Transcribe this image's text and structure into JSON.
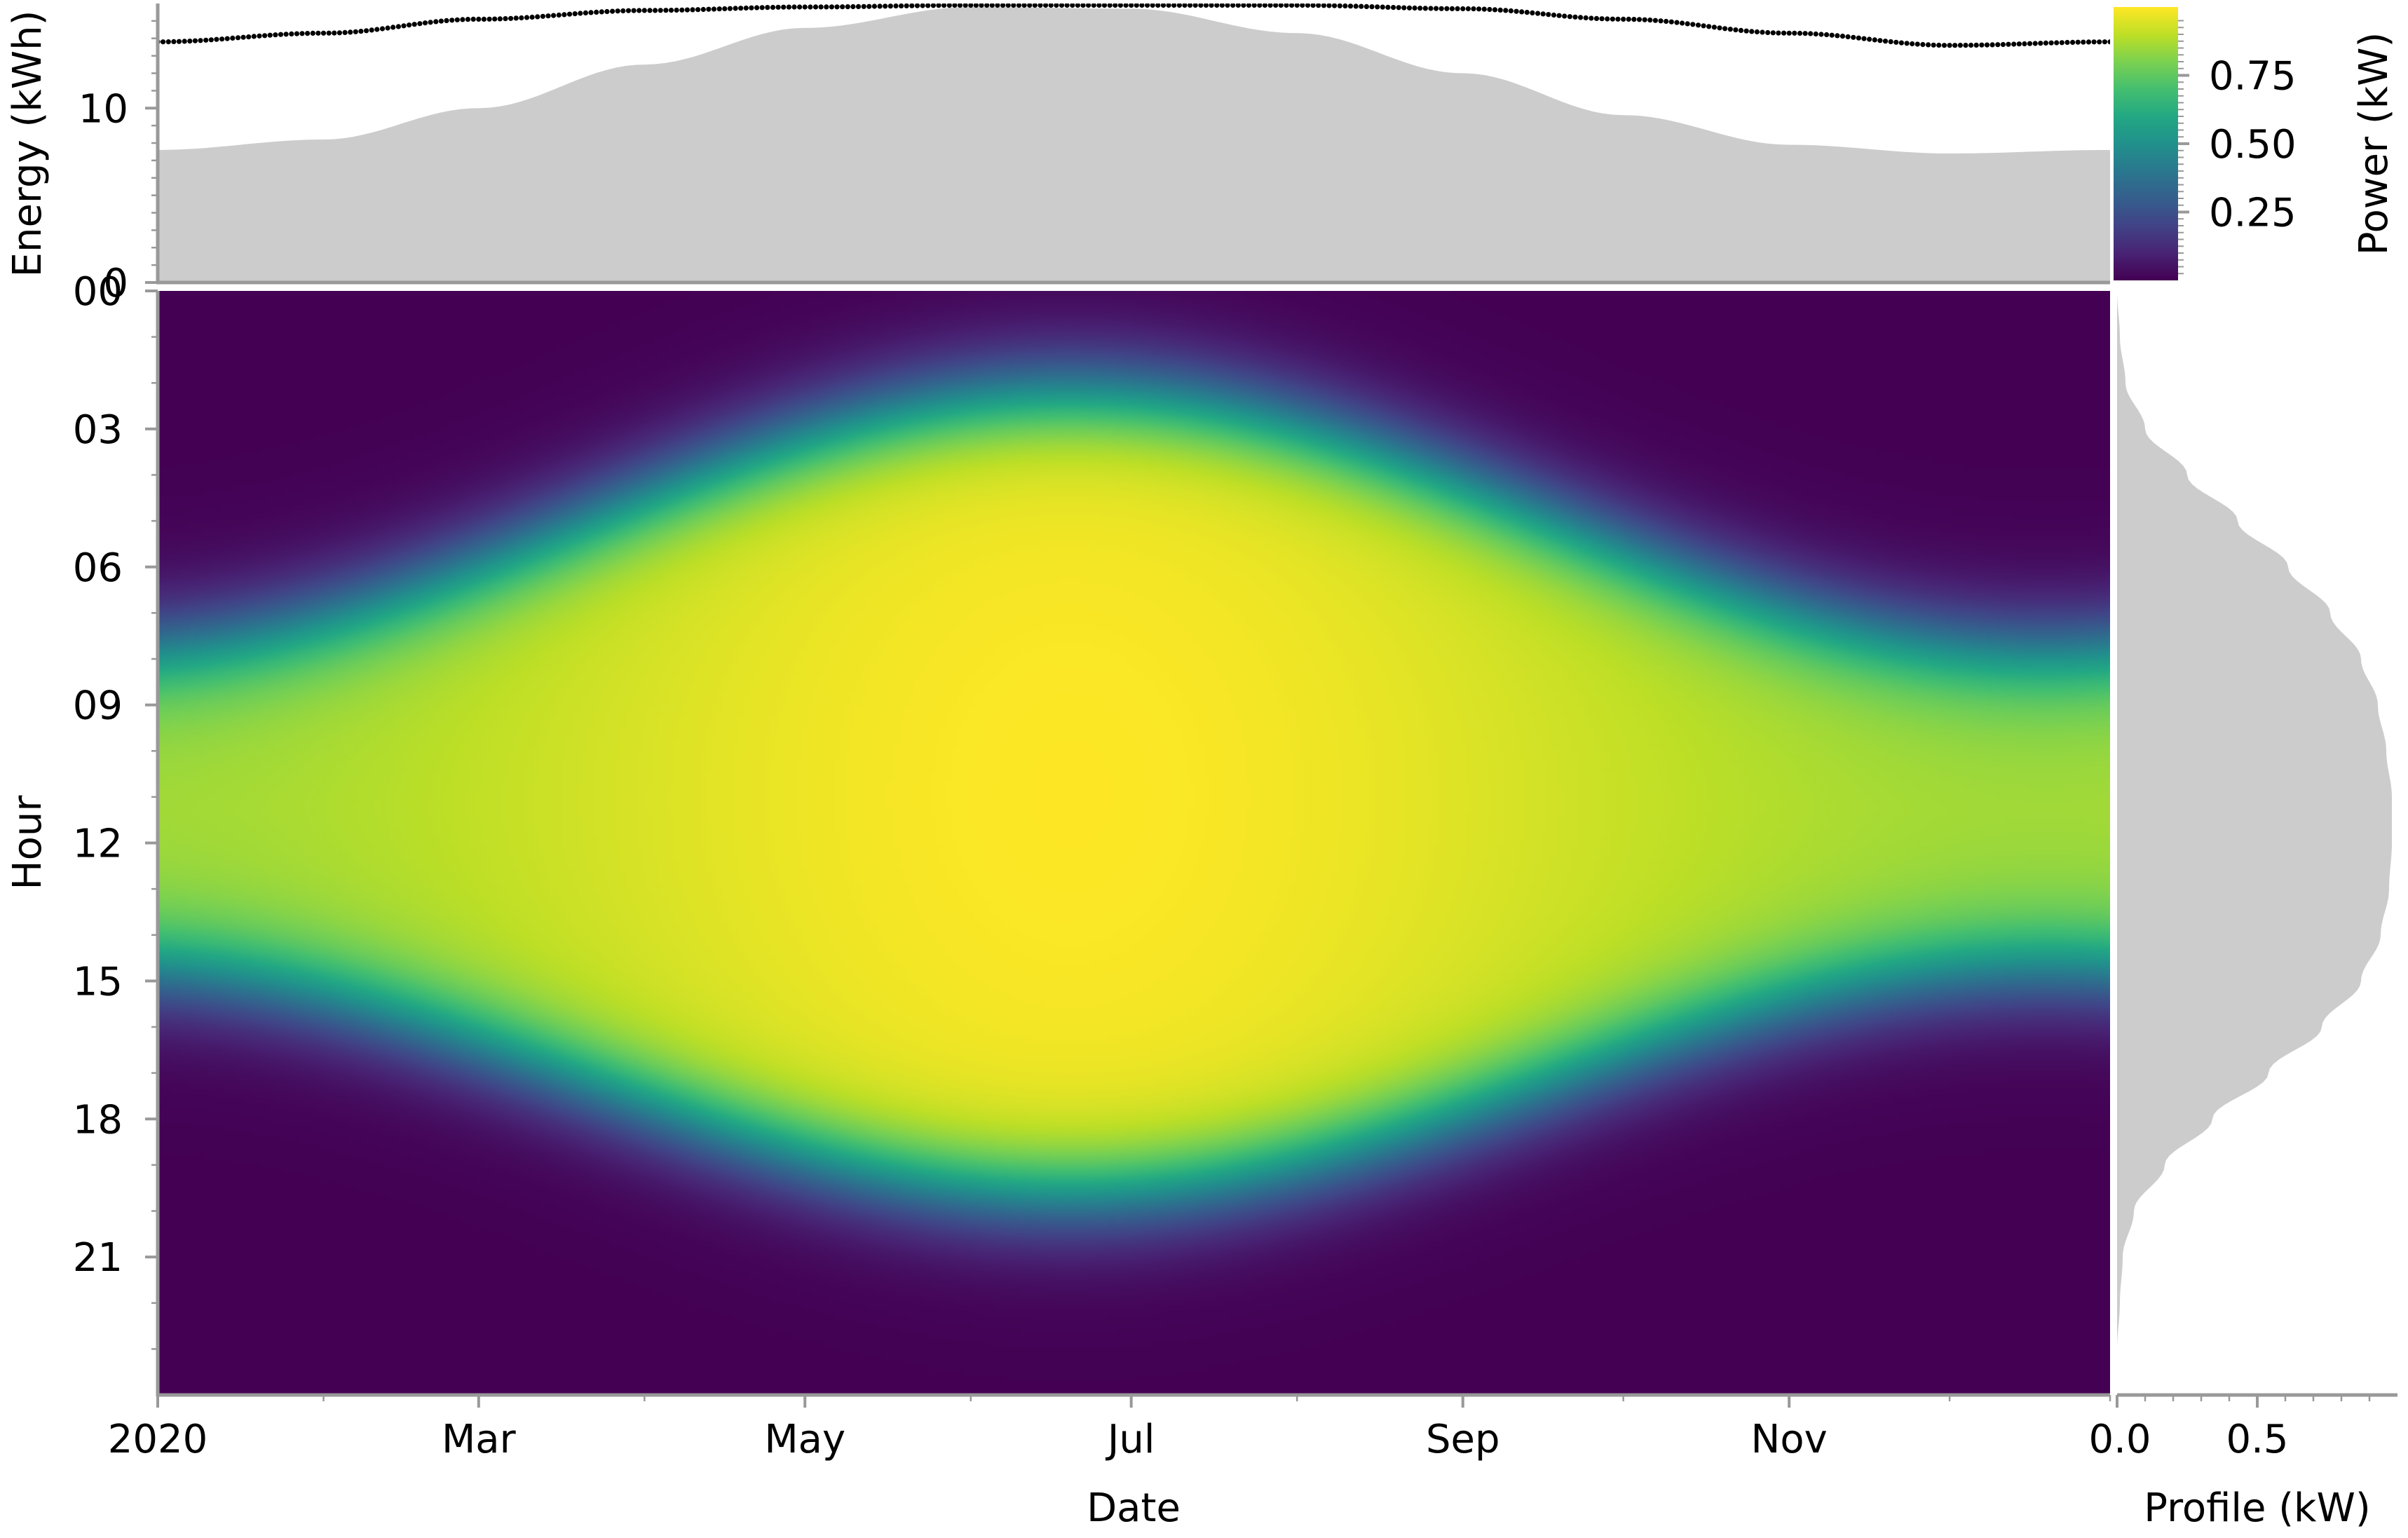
{
  "chart_data": [
    {
      "type": "area",
      "ylabel": "Energy (kWh)",
      "yticks": [
        0,
        10
      ],
      "ylim": [
        0,
        16
      ],
      "series": [
        {
          "kind": "area",
          "x": [
            "2020-01-01",
            "2020-02-01",
            "2020-03-01",
            "2020-04-01",
            "2020-05-01",
            "2020-06-01",
            "2020-07-01",
            "2020-08-01",
            "2020-09-01",
            "2020-10-01",
            "2020-11-01",
            "2020-12-01",
            "2020-12-31"
          ],
          "values": [
            7.6,
            8.2,
            10.0,
            12.5,
            14.6,
            15.8,
            15.7,
            14.3,
            12.0,
            9.6,
            7.9,
            7.4,
            7.6
          ]
        },
        {
          "kind": "line-dotted",
          "x": [
            "2020-01-01",
            "2020-02-01",
            "2020-03-01",
            "2020-04-01",
            "2020-05-01",
            "2020-06-01",
            "2020-07-01",
            "2020-08-01",
            "2020-09-01",
            "2020-10-01",
            "2020-11-01",
            "2020-12-01",
            "2020-12-31"
          ],
          "values": [
            13.8,
            14.3,
            15.1,
            15.6,
            15.8,
            15.9,
            15.9,
            15.9,
            15.7,
            15.1,
            14.3,
            13.6,
            13.8
          ]
        }
      ],
      "color": "#cccccc"
    },
    {
      "type": "heatmap",
      "xlabel": "Date",
      "ylabel": "Hour",
      "x_tick_labels": [
        "2020",
        "Mar",
        "May",
        "Jul",
        "Sep",
        "Nov"
      ],
      "x_tick_dates": [
        "2020-01-01",
        "2020-03-01",
        "2020-05-01",
        "2020-07-01",
        "2020-09-01",
        "2020-11-01"
      ],
      "x_range": [
        "2020-01-01",
        "2020-12-31"
      ],
      "y_tick_labels": [
        "00",
        "03",
        "06",
        "09",
        "12",
        "15",
        "18",
        "21"
      ],
      "y_range": [
        0,
        24
      ],
      "colormap": "viridis",
      "colorbar": {
        "label": "Power (kW)",
        "ticks": [
          0.25,
          0.5,
          0.75
        ],
        "tick_labels": [
          "0.25",
          "0.50",
          "0.75"
        ],
        "range": [
          0,
          1
        ]
      }
    },
    {
      "type": "area",
      "orientation": "horizontal",
      "xlabel": "Profile (kW)",
      "xticks": [
        0.0,
        0.5
      ],
      "xtick_labels": [
        "0.0",
        "0.5"
      ],
      "xlim": [
        0,
        1.0
      ],
      "y": [
        0,
        1,
        2,
        3,
        4,
        5,
        6,
        7,
        8,
        9,
        10,
        11,
        12,
        13,
        14,
        15,
        16,
        17,
        18,
        19,
        20,
        21,
        22,
        23,
        24
      ],
      "values": [
        0,
        0.01,
        0.03,
        0.1,
        0.25,
        0.43,
        0.61,
        0.76,
        0.87,
        0.93,
        0.96,
        0.98,
        0.98,
        0.97,
        0.94,
        0.87,
        0.73,
        0.54,
        0.34,
        0.17,
        0.06,
        0.02,
        0.01,
        0.0,
        0
      ],
      "color": "#cccccc"
    }
  ],
  "colors": {
    "spine": "#999999",
    "area": "#cccccc",
    "dots": "#000000"
  }
}
